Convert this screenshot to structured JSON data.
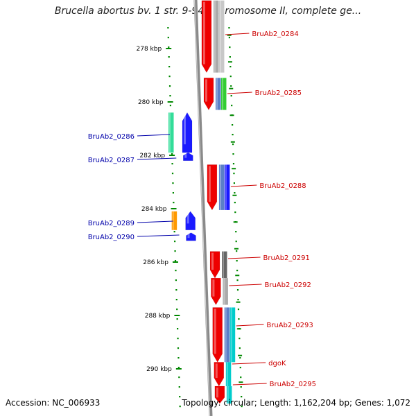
{
  "header": {
    "title": "Brucella abortus bv. 1 str. 9-941 chromosome II, complete ge..."
  },
  "footer": {
    "accession": "Accession: NC_006933",
    "summary": "Topology: circular; Length: 1,162,204 bp; Genes: 1,072"
  },
  "colors": {
    "forward_label": "#cc0000",
    "reverse_label": "#0000aa",
    "tick": "#008800",
    "backbone": "#8a8a8a"
  },
  "ticks": [
    {
      "label": "278 kbp",
      "kbp": 278
    },
    {
      "label": "280 kbp",
      "kbp": 280
    },
    {
      "label": "282 kbp",
      "kbp": 282
    },
    {
      "label": "284 kbp",
      "kbp": 284
    },
    {
      "label": "286 kbp",
      "kbp": 286
    },
    {
      "label": "288 kbp",
      "kbp": 288
    },
    {
      "label": "290 kbp",
      "kbp": 290
    }
  ],
  "genes": [
    {
      "id": "BruAb2_0284",
      "strand": "+",
      "start_kbp": 276.2,
      "end_kbp": 278.9,
      "arrow_color": "#ee0000",
      "feature_colors": [
        "#aaaaaa",
        "#c8c8c8"
      ]
    },
    {
      "id": "BruAb2_0285",
      "strand": "+",
      "start_kbp": 279.1,
      "end_kbp": 280.3,
      "arrow_color": "#ee0000",
      "feature_colors": [
        "#5b7fc8",
        "#33cc33"
      ]
    },
    {
      "id": "BruAb2_0286",
      "strand": "-",
      "start_kbp": 280.4,
      "end_kbp": 281.9,
      "arrow_color": "#1a1aff",
      "feature_colors": [
        "#33dd99"
      ]
    },
    {
      "id": "BruAb2_0287",
      "strand": "-",
      "start_kbp": 281.9,
      "end_kbp": 282.2,
      "arrow_color": "#1a1aff",
      "feature_colors": []
    },
    {
      "id": "BruAb2_0288",
      "strand": "+",
      "start_kbp": 282.35,
      "end_kbp": 284.05,
      "arrow_color": "#ee0000",
      "feature_colors": [
        "#5b7fc8",
        "#1a1aff"
      ]
    },
    {
      "id": "BruAb2_0289",
      "strand": "-",
      "start_kbp": 284.1,
      "end_kbp": 284.8,
      "arrow_color": "#1a1aff",
      "feature_colors": [
        "#ff9900"
      ]
    },
    {
      "id": "BruAb2_0290",
      "strand": "-",
      "start_kbp": 284.9,
      "end_kbp": 285.2,
      "arrow_color": "#1a1aff",
      "feature_colors": []
    },
    {
      "id": "BruAb2_0291",
      "strand": "+",
      "start_kbp": 285.6,
      "end_kbp": 286.6,
      "arrow_color": "#ee0000",
      "feature_colors": [
        "#666666"
      ]
    },
    {
      "id": "BruAb2_0292",
      "strand": "+",
      "start_kbp": 286.6,
      "end_kbp": 287.6,
      "arrow_color": "#ee0000",
      "feature_colors": [
        "#aaaaaa"
      ]
    },
    {
      "id": "BruAb2_0293",
      "strand": "+",
      "start_kbp": 287.7,
      "end_kbp": 289.75,
      "arrow_color": "#ee0000",
      "feature_colors": [
        "#5b7fc8",
        "#00cccc"
      ]
    },
    {
      "id": "dgoK",
      "strand": "+",
      "start_kbp": 289.75,
      "end_kbp": 290.65,
      "arrow_color": "#ee0000",
      "feature_colors": [
        "#00cccc"
      ]
    },
    {
      "id": "BruAb2_0295",
      "strand": "+",
      "start_kbp": 290.65,
      "end_kbp": 291.3,
      "arrow_color": "#ee0000",
      "feature_colors": [
        "#00cccc"
      ]
    }
  ]
}
